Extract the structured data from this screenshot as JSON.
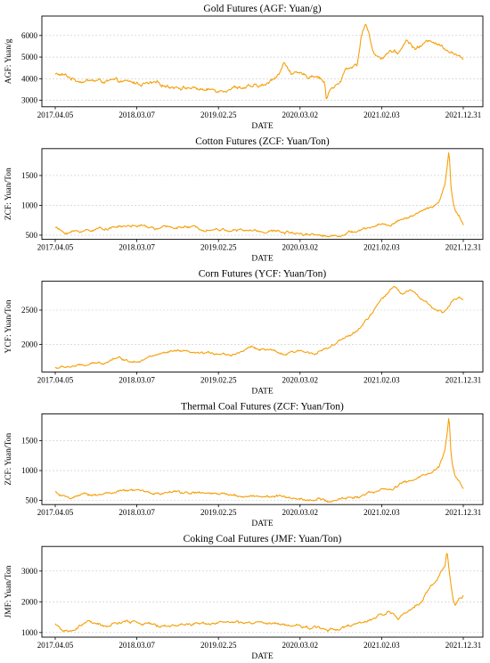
{
  "chart_data": [
    {
      "type": "line",
      "title": "Gold Futures (AGF: Yuan/g)",
      "xlabel": "DATE",
      "ylabel": "AGF: Yuan/g",
      "xticks": [
        "2017.04.05",
        "2018.03.07",
        "2019.02.25",
        "2020.03.02",
        "2021.02.03",
        "2021.12.31"
      ],
      "yticks": [
        3000,
        4000,
        5000,
        6000
      ],
      "ylim": [
        2700,
        6900
      ],
      "grid": "horizontal dashed",
      "color": "#f5a00a",
      "anchors": [
        [
          0,
          4200
        ],
        [
          0.02,
          4150
        ],
        [
          0.05,
          3950
        ],
        [
          0.1,
          3900
        ],
        [
          0.15,
          3850
        ],
        [
          0.2,
          3780
        ],
        [
          0.25,
          3720
        ],
        [
          0.3,
          3650
        ],
        [
          0.32,
          3600
        ],
        [
          0.35,
          3550
        ],
        [
          0.37,
          3450
        ],
        [
          0.4,
          3500
        ],
        [
          0.45,
          3650
        ],
        [
          0.48,
          3580
        ],
        [
          0.52,
          3700
        ],
        [
          0.53,
          3950
        ],
        [
          0.55,
          4300
        ],
        [
          0.56,
          4700
        ],
        [
          0.58,
          4300
        ],
        [
          0.6,
          4150
        ],
        [
          0.62,
          4100
        ],
        [
          0.64,
          4200
        ],
        [
          0.66,
          3900
        ],
        [
          0.665,
          3000
        ],
        [
          0.67,
          3400
        ],
        [
          0.68,
          3600
        ],
        [
          0.7,
          3800
        ],
        [
          0.71,
          4400
        ],
        [
          0.74,
          4700
        ],
        [
          0.75,
          5900
        ],
        [
          0.76,
          6600
        ],
        [
          0.765,
          6300
        ],
        [
          0.77,
          6000
        ],
        [
          0.78,
          5200
        ],
        [
          0.8,
          5000
        ],
        [
          0.82,
          5300
        ],
        [
          0.84,
          5100
        ],
        [
          0.86,
          5800
        ],
        [
          0.88,
          5400
        ],
        [
          0.9,
          5550
        ],
        [
          0.92,
          5800
        ],
        [
          0.94,
          5600
        ],
        [
          0.96,
          5400
        ],
        [
          0.98,
          5200
        ],
        [
          1,
          4800
        ]
      ],
      "noise": 110
    },
    {
      "type": "line",
      "title": "Cotton Futures (ZCF: Yuan/Ton)",
      "xlabel": "DATE",
      "ylabel": "ZCF: Yuan/Ton",
      "xticks": [
        "2017.04.05",
        "2018.03.07",
        "2019.02.25",
        "2020.03.02",
        "2021.02.03",
        "2021.12.31"
      ],
      "yticks": [
        500,
        1000,
        1500
      ],
      "ylim": [
        430,
        1950
      ],
      "grid": "horizontal dashed",
      "color": "#f5a00a",
      "anchors": [
        [
          0,
          640
        ],
        [
          0.02,
          540
        ],
        [
          0.05,
          560
        ],
        [
          0.1,
          600
        ],
        [
          0.15,
          640
        ],
        [
          0.2,
          660
        ],
        [
          0.25,
          610
        ],
        [
          0.3,
          640
        ],
        [
          0.35,
          620
        ],
        [
          0.4,
          600
        ],
        [
          0.45,
          580
        ],
        [
          0.5,
          570
        ],
        [
          0.55,
          560
        ],
        [
          0.6,
          540
        ],
        [
          0.65,
          510
        ],
        [
          0.67,
          480
        ],
        [
          0.7,
          520
        ],
        [
          0.75,
          580
        ],
        [
          0.78,
          640
        ],
        [
          0.8,
          700
        ],
        [
          0.82,
          660
        ],
        [
          0.85,
          780
        ],
        [
          0.88,
          840
        ],
        [
          0.9,
          900
        ],
        [
          0.92,
          950
        ],
        [
          0.94,
          1050
        ],
        [
          0.955,
          1350
        ],
        [
          0.96,
          1600
        ],
        [
          0.965,
          1900
        ],
        [
          0.97,
          1300
        ],
        [
          0.975,
          1050
        ],
        [
          0.98,
          900
        ],
        [
          0.99,
          800
        ],
        [
          1,
          680
        ]
      ],
      "noise": 28
    },
    {
      "type": "line",
      "title": "Corn Futures (YCF: Yuan/Ton)",
      "xlabel": "DATE",
      "ylabel": "YCF: Yuan/Ton",
      "xticks": [
        "2017.04.05",
        "2018.03.07",
        "2019.02.25",
        "2020.03.02",
        "2021.02.03",
        "2021.12.31"
      ],
      "yticks": [
        2000,
        2500
      ],
      "ylim": [
        1600,
        2920
      ],
      "grid": "horizontal dashed",
      "color": "#f5a00a",
      "anchors": [
        [
          0,
          1660
        ],
        [
          0.04,
          1680
        ],
        [
          0.08,
          1700
        ],
        [
          0.12,
          1740
        ],
        [
          0.15,
          1820
        ],
        [
          0.18,
          1760
        ],
        [
          0.21,
          1780
        ],
        [
          0.25,
          1850
        ],
        [
          0.3,
          1900
        ],
        [
          0.35,
          1860
        ],
        [
          0.4,
          1880
        ],
        [
          0.43,
          1850
        ],
        [
          0.48,
          1960
        ],
        [
          0.52,
          1920
        ],
        [
          0.56,
          1850
        ],
        [
          0.6,
          1900
        ],
        [
          0.63,
          1880
        ],
        [
          0.67,
          1950
        ],
        [
          0.7,
          2050
        ],
        [
          0.74,
          2200
        ],
        [
          0.77,
          2400
        ],
        [
          0.8,
          2650
        ],
        [
          0.83,
          2850
        ],
        [
          0.85,
          2750
        ],
        [
          0.87,
          2800
        ],
        [
          0.89,
          2700
        ],
        [
          0.91,
          2600
        ],
        [
          0.93,
          2500
        ],
        [
          0.95,
          2450
        ],
        [
          0.97,
          2600
        ],
        [
          0.99,
          2700
        ],
        [
          1,
          2660
        ]
      ],
      "noise": 22
    },
    {
      "type": "line",
      "title": "Thermal Coal Futures (ZCF: Yuan/Ton)",
      "xlabel": "DATE",
      "ylabel": "ZCF: Yuan/Ton",
      "xticks": [
        "2017.04.05",
        "2018.03.07",
        "2019.02.25",
        "2020.03.02",
        "2021.02.03",
        "2021.12.31"
      ],
      "yticks": [
        500,
        1000,
        1500
      ],
      "ylim": [
        430,
        1950
      ],
      "grid": "horizontal dashed",
      "color": "#f5a00a",
      "anchors": [
        [
          0,
          640
        ],
        [
          0.02,
          540
        ],
        [
          0.05,
          560
        ],
        [
          0.1,
          600
        ],
        [
          0.15,
          640
        ],
        [
          0.2,
          660
        ],
        [
          0.25,
          610
        ],
        [
          0.3,
          640
        ],
        [
          0.35,
          620
        ],
        [
          0.4,
          600
        ],
        [
          0.45,
          580
        ],
        [
          0.5,
          570
        ],
        [
          0.55,
          560
        ],
        [
          0.6,
          540
        ],
        [
          0.65,
          510
        ],
        [
          0.67,
          480
        ],
        [
          0.7,
          520
        ],
        [
          0.75,
          580
        ],
        [
          0.78,
          640
        ],
        [
          0.8,
          700
        ],
        [
          0.82,
          660
        ],
        [
          0.85,
          780
        ],
        [
          0.88,
          840
        ],
        [
          0.9,
          900
        ],
        [
          0.92,
          950
        ],
        [
          0.94,
          1050
        ],
        [
          0.955,
          1350
        ],
        [
          0.96,
          1600
        ],
        [
          0.965,
          1900
        ],
        [
          0.97,
          1300
        ],
        [
          0.975,
          1050
        ],
        [
          0.98,
          900
        ],
        [
          0.99,
          800
        ],
        [
          1,
          680
        ]
      ],
      "noise": 28
    },
    {
      "type": "line",
      "title": "Coking Coal Futures (JMF: Yuan/Ton)",
      "xlabel": "DATE",
      "ylabel": "JMF: Yuan/Ton",
      "xticks": [
        "2017.04.05",
        "2018.03.07",
        "2019.02.25",
        "2020.03.02",
        "2021.02.03",
        "2021.12.31"
      ],
      "yticks": [
        1000,
        2000,
        3000
      ],
      "ylim": [
        850,
        3800
      ],
      "grid": "horizontal dashed",
      "color": "#f5a00a",
      "anchors": [
        [
          0,
          1300
        ],
        [
          0.02,
          1050
        ],
        [
          0.04,
          1000
        ],
        [
          0.06,
          1200
        ],
        [
          0.08,
          1400
        ],
        [
          0.1,
          1250
        ],
        [
          0.12,
          1200
        ],
        [
          0.15,
          1300
        ],
        [
          0.2,
          1350
        ],
        [
          0.25,
          1200
        ],
        [
          0.3,
          1250
        ],
        [
          0.35,
          1300
        ],
        [
          0.4,
          1350
        ],
        [
          0.45,
          1300
        ],
        [
          0.5,
          1300
        ],
        [
          0.55,
          1250
        ],
        [
          0.6,
          1200
        ],
        [
          0.65,
          1150
        ],
        [
          0.67,
          1100
        ],
        [
          0.7,
          1150
        ],
        [
          0.75,
          1300
        ],
        [
          0.78,
          1400
        ],
        [
          0.8,
          1600
        ],
        [
          0.82,
          1700
        ],
        [
          0.84,
          1500
        ],
        [
          0.86,
          1600
        ],
        [
          0.88,
          1800
        ],
        [
          0.9,
          2100
        ],
        [
          0.92,
          2500
        ],
        [
          0.94,
          2800
        ],
        [
          0.955,
          3200
        ],
        [
          0.96,
          3700
        ],
        [
          0.965,
          3100
        ],
        [
          0.97,
          2600
        ],
        [
          0.975,
          2100
        ],
        [
          0.98,
          1900
        ],
        [
          0.99,
          2100
        ],
        [
          1,
          2200
        ]
      ],
      "noise": 60
    }
  ]
}
